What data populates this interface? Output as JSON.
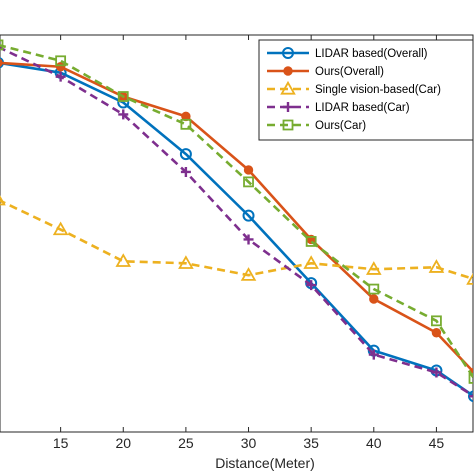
{
  "chart_data": {
    "type": "line",
    "title": "",
    "xlabel": "Distance(Meter)",
    "ylabel": "",
    "xlim": [
      10,
      48
    ],
    "ylim": [
      0,
      1
    ],
    "xticks": [
      15,
      20,
      25,
      30,
      35,
      40,
      45
    ],
    "grid": false,
    "legend_position": "top-right",
    "x": [
      10,
      15,
      20,
      25,
      30,
      35,
      40,
      45,
      48
    ],
    "series": [
      {
        "name": "LIDAR based(Overall)",
        "color": "#0072BD",
        "line": "solid",
        "marker": "circle",
        "values": [
          0.93,
          0.905,
          0.83,
          0.7,
          0.545,
          0.375,
          0.205,
          0.155,
          0.09
        ]
      },
      {
        "name": "Ours(Overall)",
        "color": "#D95319",
        "line": "solid",
        "marker": "dot",
        "values": [
          0.93,
          0.92,
          0.845,
          0.795,
          0.66,
          0.485,
          0.335,
          0.25,
          0.15
        ]
      },
      {
        "name": "Single vision-based(Car)",
        "color": "#EDB120",
        "line": "dashed",
        "marker": "triangle",
        "values": [
          0.585,
          0.51,
          0.43,
          0.425,
          0.395,
          0.425,
          0.41,
          0.415,
          0.385
        ]
      },
      {
        "name": "LIDAR based(Car)",
        "color": "#7E2F8E",
        "line": "dashed",
        "marker": "plus",
        "values": [
          0.97,
          0.895,
          0.8,
          0.655,
          0.485,
          0.37,
          0.195,
          0.15,
          0.09
        ]
      },
      {
        "name": "Ours(Car)",
        "color": "#77AC30",
        "line": "dashed",
        "marker": "square",
        "values": [
          0.975,
          0.935,
          0.845,
          0.775,
          0.63,
          0.48,
          0.36,
          0.28,
          0.135
        ]
      }
    ]
  }
}
